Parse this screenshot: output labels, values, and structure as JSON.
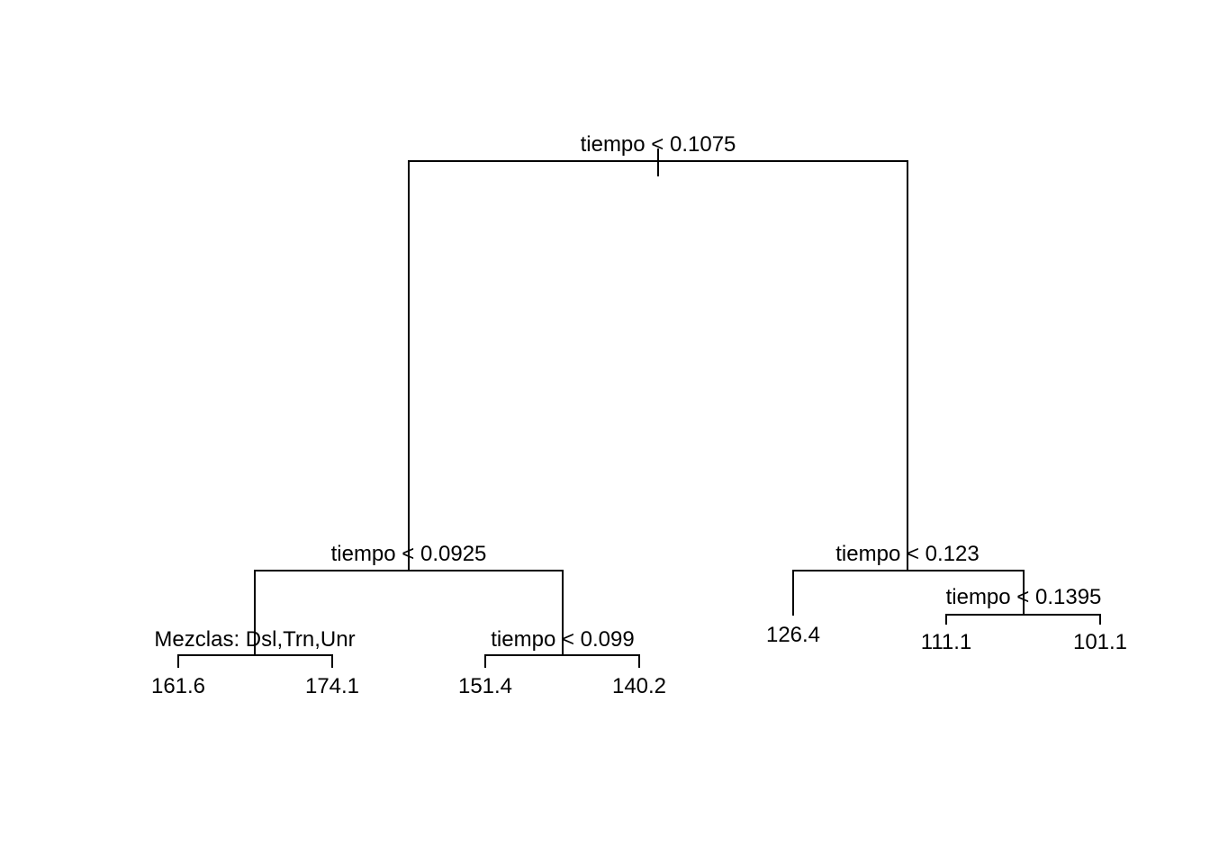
{
  "tree": {
    "type": "regression-tree",
    "root": {
      "split": "tiempo < 0.1075",
      "left": {
        "split": "tiempo < 0.0925",
        "left": {
          "split": "Mezclas: Dsl,Trn,Unr",
          "left": {
            "leaf": "161.6"
          },
          "right": {
            "leaf": "174.1"
          }
        },
        "right": {
          "split": "tiempo < 0.099",
          "left": {
            "leaf": "151.4"
          },
          "right": {
            "leaf": "140.2"
          }
        }
      },
      "right": {
        "split": "tiempo < 0.123",
        "left": {
          "leaf": "126.4"
        },
        "right": {
          "split": "tiempo < 0.1395",
          "left": {
            "leaf": "111.1"
          },
          "right": {
            "leaf": "101.1"
          }
        }
      }
    }
  },
  "colors": {
    "line": "#000000",
    "text": "#000000",
    "background": "#ffffff"
  }
}
